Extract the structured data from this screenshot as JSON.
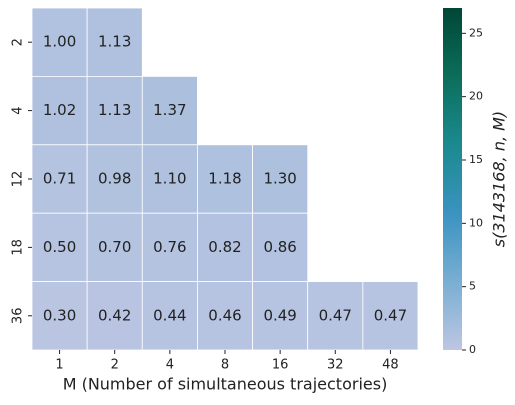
{
  "chart_data": {
    "type": "heatmap",
    "xlabel": "M (Number of simultaneous trajectories)",
    "x_categories": [
      "1",
      "2",
      "4",
      "8",
      "16",
      "32",
      "48"
    ],
    "y_categories": [
      "2",
      "4",
      "12",
      "18",
      "36"
    ],
    "values": [
      [
        1.0,
        1.13,
        null,
        null,
        null,
        null,
        null
      ],
      [
        1.02,
        1.13,
        1.37,
        null,
        null,
        null,
        null
      ],
      [
        0.71,
        0.98,
        1.1,
        1.18,
        1.3,
        null,
        null
      ],
      [
        0.5,
        0.7,
        0.76,
        0.82,
        0.86,
        null,
        null
      ],
      [
        0.3,
        0.42,
        0.44,
        0.46,
        0.49,
        0.47,
        0.47
      ]
    ],
    "value_labels": [
      [
        "1.00",
        "1.13",
        null,
        null,
        null,
        null,
        null
      ],
      [
        "1.02",
        "1.13",
        "1.37",
        null,
        null,
        null,
        null
      ],
      [
        "0.71",
        "0.98",
        "1.10",
        "1.18",
        "1.30",
        null,
        null
      ],
      [
        "0.50",
        "0.70",
        "0.76",
        "0.82",
        "0.86",
        null,
        null
      ],
      [
        "0.30",
        "0.42",
        "0.44",
        "0.46",
        "0.49",
        "0.47",
        "0.47"
      ]
    ],
    "colorbar_label": "s(3143168, n, M)",
    "clim": [
      0,
      27
    ],
    "cticks": [
      0,
      5,
      10,
      15,
      20,
      25
    ],
    "colormap": [
      "#bdc6e2",
      "#79aed3",
      "#3a93c0",
      "#1b8a8f",
      "#0b6e5a",
      "#014636"
    ]
  }
}
